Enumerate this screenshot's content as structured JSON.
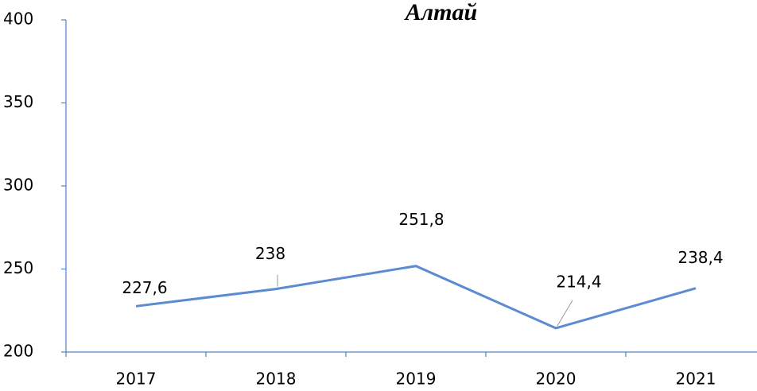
{
  "chart_data": {
    "type": "line",
    "title": "Алтай",
    "categories": [
      "2017",
      "2018",
      "2019",
      "2020",
      "2021"
    ],
    "series": [
      {
        "color": "#5b8bd0",
        "values": [
          227.6,
          238,
          251.8,
          214.4,
          238.4
        ],
        "value_labels": [
          "227,6",
          "238",
          "251,8",
          "214,4",
          "238,4"
        ]
      }
    ],
    "ylim": [
      200,
      400
    ],
    "yticks": [
      200,
      250,
      300,
      350,
      400
    ]
  }
}
